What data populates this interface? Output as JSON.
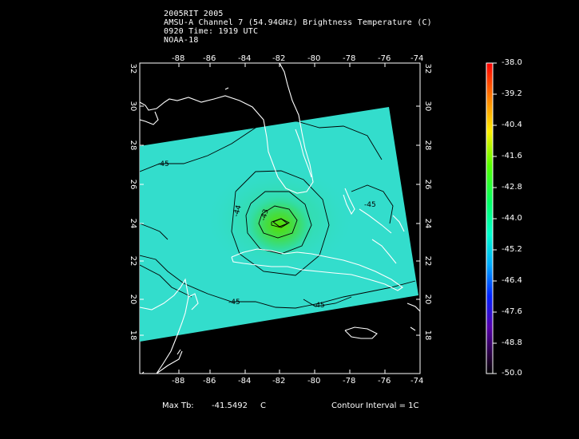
{
  "title_lines": [
    "2005RIT 2005",
    "AMSU-A Channel 7 (54.94GHz) Brightness Temperature (C)",
    "0920 Time: 1919 UTC",
    "NOAA-18"
  ],
  "map": {
    "lon_ticks": [
      "-88",
      "-86",
      "-84",
      "-82",
      "-80",
      "-78",
      "-76",
      "-74"
    ],
    "lat_ticks": [
      "18",
      "20",
      "22",
      "24",
      "26",
      "28",
      "30",
      "32"
    ],
    "lon_range": [
      -90,
      -74
    ],
    "lat_range": [
      16,
      32
    ],
    "contour_labels": [
      "-45",
      "-44",
      "-43",
      "-45",
      "-45",
      "-45"
    ],
    "colors": {
      "background": "#000000",
      "swath_base": "#33ddcc",
      "eye_center": "#66dd11",
      "coastline": "#ffffff",
      "contour": "#000000"
    }
  },
  "colorbar": {
    "labels": [
      "-38.0",
      "-39.2",
      "-40.4",
      "-41.6",
      "-42.8",
      "-44.0",
      "-45.2",
      "-46.4",
      "-47.6",
      "-48.8",
      "-50.0"
    ],
    "range": [
      -50.0,
      -38.0
    ],
    "gradient_colors": [
      "#ff0000",
      "#ff8800",
      "#ffee00",
      "#55ff00",
      "#00ff66",
      "#00ffcc",
      "#00aaff",
      "#0022ff",
      "#5500aa",
      "#220033",
      "#000000"
    ]
  },
  "footer": {
    "max_tb_label": "Max Tb:",
    "max_tb_value": "-41.5492",
    "max_tb_unit": "C",
    "contour_interval": "Contour Interval = 1C"
  }
}
